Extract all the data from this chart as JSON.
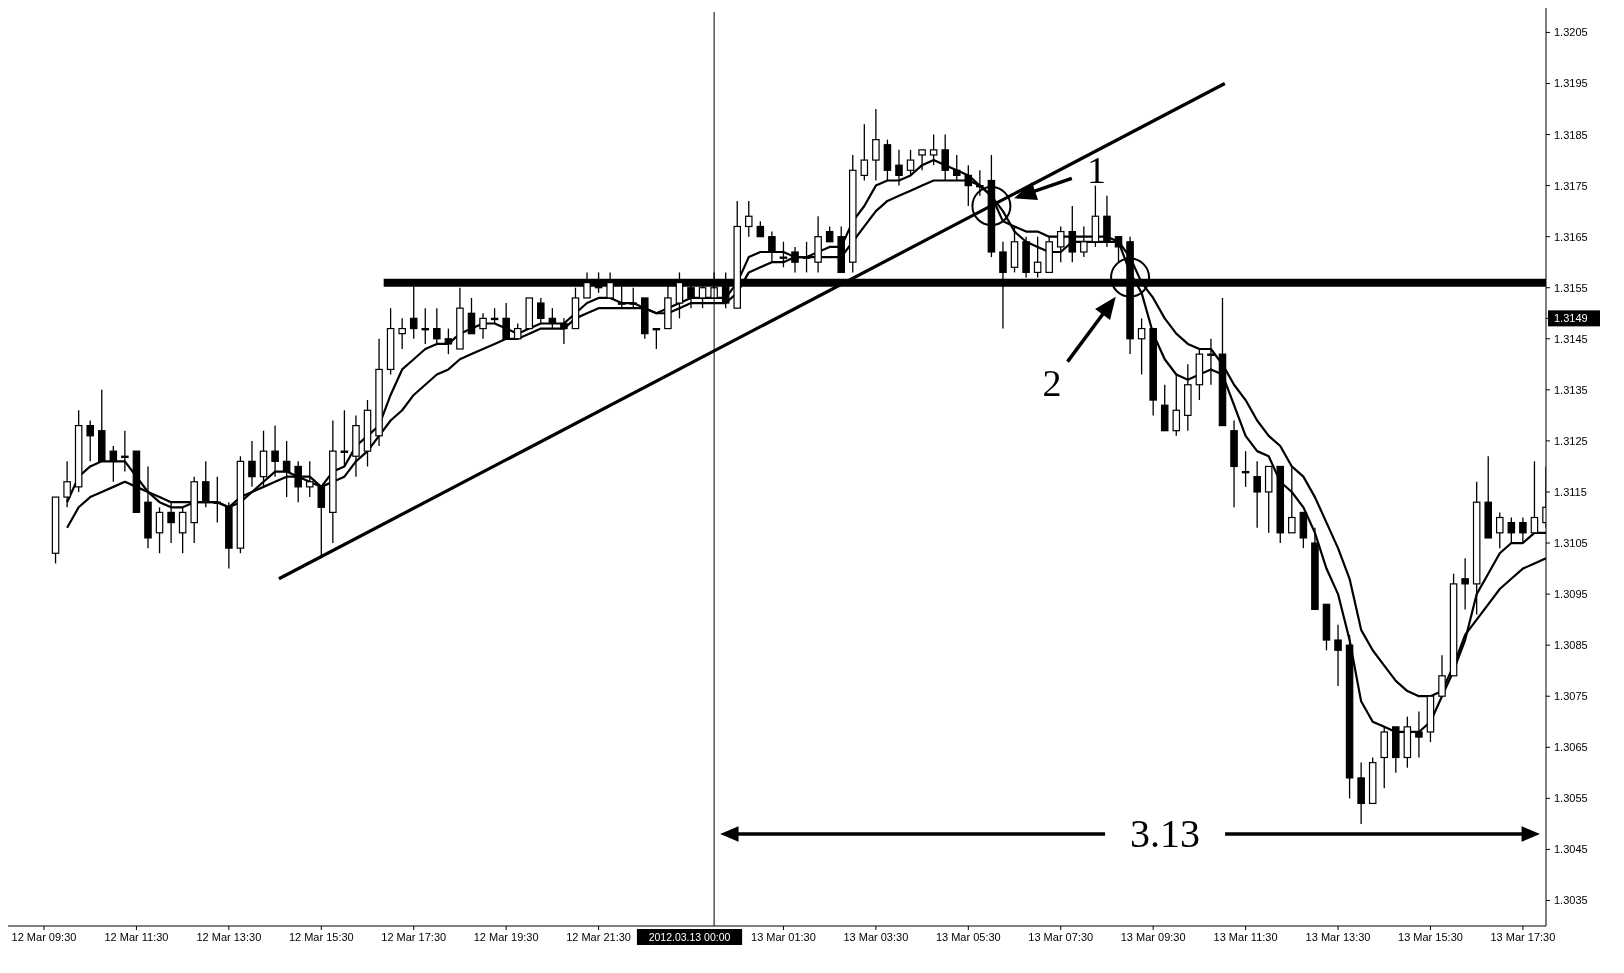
{
  "chart_data": {
    "type": "candlestick",
    "x": [
      "2012-03-12T09:45",
      "2012-03-12T10:00",
      "2012-03-12T10:15",
      "2012-03-12T10:30",
      "2012-03-12T10:45",
      "2012-03-12T11:00",
      "2012-03-12T11:15",
      "2012-03-12T11:30",
      "2012-03-12T11:45",
      "2012-03-12T12:00",
      "2012-03-12T12:15",
      "2012-03-12T12:30",
      "2012-03-12T12:45",
      "2012-03-12T13:00",
      "2012-03-12T13:15",
      "2012-03-12T13:30",
      "2012-03-12T13:45",
      "2012-03-12T14:00",
      "2012-03-12T14:15",
      "2012-03-12T14:30",
      "2012-03-12T14:45",
      "2012-03-12T15:00",
      "2012-03-12T15:15",
      "2012-03-12T15:30",
      "2012-03-12T15:45",
      "2012-03-12T16:00",
      "2012-03-12T16:15",
      "2012-03-12T16:30",
      "2012-03-12T16:45",
      "2012-03-12T17:00",
      "2012-03-12T17:15",
      "2012-03-12T17:30",
      "2012-03-12T17:45",
      "2012-03-12T18:00",
      "2012-03-12T18:15",
      "2012-03-12T18:30",
      "2012-03-12T18:45",
      "2012-03-12T19:00",
      "2012-03-12T19:15",
      "2012-03-12T19:30",
      "2012-03-12T19:45",
      "2012-03-12T20:00",
      "2012-03-12T20:15",
      "2012-03-12T20:30",
      "2012-03-12T20:45",
      "2012-03-12T21:00",
      "2012-03-12T21:15",
      "2012-03-12T21:30",
      "2012-03-12T21:45",
      "2012-03-12T22:00",
      "2012-03-12T22:15",
      "2012-03-12T22:30",
      "2012-03-12T22:45",
      "2012-03-12T23:00",
      "2012-03-12T23:15",
      "2012-03-12T23:30",
      "2012-03-12T23:45",
      "2012-03-13T00:00",
      "2012-03-13T00:15",
      "2012-03-13T00:30",
      "2012-03-13T00:45",
      "2012-03-13T01:00",
      "2012-03-13T01:15",
      "2012-03-13T01:30",
      "2012-03-13T01:45",
      "2012-03-13T02:00",
      "2012-03-13T02:15",
      "2012-03-13T02:30",
      "2012-03-13T02:45",
      "2012-03-13T03:00",
      "2012-03-13T03:15",
      "2012-03-13T03:30",
      "2012-03-13T03:45",
      "2012-03-13T04:00",
      "2012-03-13T04:15",
      "2012-03-13T04:30",
      "2012-03-13T04:45",
      "2012-03-13T05:00",
      "2012-03-13T05:15",
      "2012-03-13T05:30",
      "2012-03-13T05:45",
      "2012-03-13T06:00",
      "2012-03-13T06:15",
      "2012-03-13T06:30",
      "2012-03-13T06:45",
      "2012-03-13T07:00",
      "2012-03-13T07:15",
      "2012-03-13T07:30",
      "2012-03-13T07:45",
      "2012-03-13T08:00",
      "2012-03-13T08:15",
      "2012-03-13T08:30",
      "2012-03-13T08:45",
      "2012-03-13T09:00",
      "2012-03-13T09:15",
      "2012-03-13T09:30",
      "2012-03-13T09:45",
      "2012-03-13T10:00",
      "2012-03-13T10:15",
      "2012-03-13T10:30",
      "2012-03-13T10:45",
      "2012-03-13T11:00",
      "2012-03-13T11:15",
      "2012-03-13T11:30",
      "2012-03-13T11:45",
      "2012-03-13T12:00",
      "2012-03-13T12:15",
      "2012-03-13T12:30",
      "2012-03-13T12:45",
      "2012-03-13T13:00",
      "2012-03-13T13:15",
      "2012-03-13T13:30",
      "2012-03-13T13:45",
      "2012-03-13T14:00",
      "2012-03-13T14:15",
      "2012-03-13T14:30",
      "2012-03-13T14:45",
      "2012-03-13T15:00",
      "2012-03-13T15:15",
      "2012-03-13T15:30",
      "2012-03-13T15:45",
      "2012-03-13T16:00",
      "2012-03-13T16:15",
      "2012-03-13T16:30",
      "2012-03-13T16:45",
      "2012-03-13T17:00",
      "2012-03-13T17:15",
      "2012-03-13T17:30",
      "2012-03-13T17:45",
      "2012-03-13T18:00"
    ],
    "ohlc": [
      [
        1.3103,
        1.3114,
        1.3101,
        1.3114
      ],
      [
        1.3114,
        1.3121,
        1.3112,
        1.3117
      ],
      [
        1.3116,
        1.3131,
        1.3115,
        1.3128
      ],
      [
        1.3128,
        1.3129,
        1.3121,
        1.3126
      ],
      [
        1.3127,
        1.3135,
        1.3121,
        1.3121
      ],
      [
        1.3123,
        1.3124,
        1.3117,
        1.3121
      ],
      [
        1.3122,
        1.3127,
        1.3119,
        1.3122
      ],
      [
        1.3123,
        1.3123,
        1.3111,
        1.3111
      ],
      [
        1.3113,
        1.312,
        1.3104,
        1.3106
      ],
      [
        1.3107,
        1.3112,
        1.3103,
        1.3111
      ],
      [
        1.3111,
        1.3113,
        1.3105,
        1.3109
      ],
      [
        1.3107,
        1.3112,
        1.3103,
        1.3111
      ],
      [
        1.3109,
        1.3118,
        1.3105,
        1.3117
      ],
      [
        1.3117,
        1.3121,
        1.3112,
        1.3113
      ],
      [
        1.3113,
        1.3118,
        1.3109,
        1.3113
      ],
      [
        1.3112,
        1.3113,
        1.31,
        1.3104
      ],
      [
        1.3104,
        1.3122,
        1.3103,
        1.3121
      ],
      [
        1.3121,
        1.3125,
        1.3116,
        1.3118
      ],
      [
        1.3118,
        1.3127,
        1.3116,
        1.3123
      ],
      [
        1.3123,
        1.3128,
        1.3118,
        1.3121
      ],
      [
        1.3121,
        1.3125,
        1.3114,
        1.3119
      ],
      [
        1.312,
        1.3121,
        1.3113,
        1.3116
      ],
      [
        1.3116,
        1.3121,
        1.3114,
        1.3117
      ],
      [
        1.3116,
        1.3116,
        1.3102,
        1.3112
      ],
      [
        1.3111,
        1.3129,
        1.3105,
        1.3123
      ],
      [
        1.3123,
        1.3131,
        1.312,
        1.3123
      ],
      [
        1.3122,
        1.313,
        1.3118,
        1.3128
      ],
      [
        1.3123,
        1.3133,
        1.312,
        1.3131
      ],
      [
        1.3126,
        1.3145,
        1.3124,
        1.3139
      ],
      [
        1.3139,
        1.3151,
        1.3138,
        1.3147
      ],
      [
        1.3146,
        1.3149,
        1.3143,
        1.3147
      ],
      [
        1.3149,
        1.3156,
        1.3145,
        1.3147
      ],
      [
        1.3147,
        1.3151,
        1.3144,
        1.3147
      ],
      [
        1.3147,
        1.3151,
        1.3144,
        1.3145
      ],
      [
        1.3145,
        1.3147,
        1.3142,
        1.3144
      ],
      [
        1.3143,
        1.3155,
        1.3143,
        1.3151
      ],
      [
        1.315,
        1.3153,
        1.3146,
        1.3146
      ],
      [
        1.3147,
        1.315,
        1.3145,
        1.3149
      ],
      [
        1.3149,
        1.3151,
        1.3148,
        1.3149
      ],
      [
        1.3149,
        1.3152,
        1.3145,
        1.3145
      ],
      [
        1.3145,
        1.3148,
        1.3145,
        1.3147
      ],
      [
        1.3147,
        1.3153,
        1.3147,
        1.3153
      ],
      [
        1.3152,
        1.3153,
        1.3148,
        1.3149
      ],
      [
        1.3149,
        1.3151,
        1.3147,
        1.3148
      ],
      [
        1.3148,
        1.3149,
        1.3144,
        1.3147
      ],
      [
        1.3147,
        1.3155,
        1.3147,
        1.3153
      ],
      [
        1.3153,
        1.3158,
        1.3153,
        1.3156
      ],
      [
        1.3156,
        1.3158,
        1.3154,
        1.3155
      ],
      [
        1.3153,
        1.3158,
        1.3153,
        1.3156
      ],
      [
        1.3152,
        1.3156,
        1.3151,
        1.3152
      ],
      [
        1.3152,
        1.3155,
        1.3151,
        1.3152
      ],
      [
        1.3153,
        1.3153,
        1.3145,
        1.3146
      ],
      [
        1.3147,
        1.3147,
        1.3143,
        1.3147
      ],
      [
        1.3147,
        1.3156,
        1.3147,
        1.3153
      ],
      [
        1.3152,
        1.3158,
        1.3149,
        1.3156
      ],
      [
        1.3155,
        1.3156,
        1.3151,
        1.3153
      ],
      [
        1.3153,
        1.3156,
        1.3151,
        1.3155
      ],
      [
        1.3153,
        1.3158,
        1.3153,
        1.3155
      ],
      [
        1.3156,
        1.3158,
        1.3151,
        1.3152
      ],
      [
        1.3151,
        1.3172,
        1.3151,
        1.3167
      ],
      [
        1.3167,
        1.3172,
        1.3165,
        1.3169
      ],
      [
        1.3167,
        1.3168,
        1.3165,
        1.3165
      ],
      [
        1.3165,
        1.3166,
        1.316,
        1.3162
      ],
      [
        1.3161,
        1.3164,
        1.3159,
        1.3161
      ],
      [
        1.3162,
        1.3163,
        1.3158,
        1.316
      ],
      [
        1.3161,
        1.3164,
        1.3158,
        1.3161
      ],
      [
        1.316,
        1.3169,
        1.3158,
        1.3165
      ],
      [
        1.3166,
        1.3167,
        1.3164,
        1.3164
      ],
      [
        1.3165,
        1.3167,
        1.3158,
        1.3158
      ],
      [
        1.316,
        1.3181,
        1.3158,
        1.3178
      ],
      [
        1.3177,
        1.3187,
        1.3176,
        1.318
      ],
      [
        1.318,
        1.319,
        1.3176,
        1.3184
      ],
      [
        1.3183,
        1.3184,
        1.3176,
        1.3178
      ],
      [
        1.3179,
        1.3182,
        1.3175,
        1.3177
      ],
      [
        1.3178,
        1.3182,
        1.3177,
        1.318
      ],
      [
        1.3181,
        1.3182,
        1.3178,
        1.3182
      ],
      [
        1.3181,
        1.3185,
        1.3179,
        1.3182
      ],
      [
        1.3182,
        1.3185,
        1.3176,
        1.3178
      ],
      [
        1.3178,
        1.3181,
        1.3176,
        1.3177
      ],
      [
        1.3177,
        1.3179,
        1.3171,
        1.3175
      ],
      [
        1.3175,
        1.3178,
        1.3173,
        1.3175
      ],
      [
        1.3176,
        1.3181,
        1.3161,
        1.3162
      ],
      [
        1.3162,
        1.3164,
        1.3147,
        1.3158
      ],
      [
        1.3159,
        1.3167,
        1.3158,
        1.3164
      ],
      [
        1.3164,
        1.3165,
        1.3157,
        1.3158
      ],
      [
        1.3158,
        1.3165,
        1.3157,
        1.316
      ],
      [
        1.3158,
        1.3165,
        1.3158,
        1.3164
      ],
      [
        1.3163,
        1.3167,
        1.316,
        1.3166
      ],
      [
        1.3166,
        1.3171,
        1.316,
        1.3162
      ],
      [
        1.3162,
        1.3167,
        1.3161,
        1.3164
      ],
      [
        1.3164,
        1.3175,
        1.3163,
        1.3169
      ],
      [
        1.3169,
        1.3173,
        1.3163,
        1.3164
      ],
      [
        1.3165,
        1.3165,
        1.316,
        1.3163
      ],
      [
        1.3164,
        1.3165,
        1.3142,
        1.3145
      ],
      [
        1.3145,
        1.3149,
        1.3138,
        1.3147
      ],
      [
        1.3147,
        1.3147,
        1.313,
        1.3133
      ],
      [
        1.3132,
        1.3136,
        1.3127,
        1.3127
      ],
      [
        1.3127,
        1.3138,
        1.3126,
        1.3131
      ],
      [
        1.313,
        1.314,
        1.3127,
        1.3136
      ],
      [
        1.3136,
        1.3143,
        1.3133,
        1.3142
      ],
      [
        1.3142,
        1.3145,
        1.3136,
        1.3142
      ],
      [
        1.3142,
        1.3153,
        1.3128,
        1.3128
      ],
      [
        1.3127,
        1.3129,
        1.3112,
        1.312
      ],
      [
        1.3119,
        1.3123,
        1.3116,
        1.3119
      ],
      [
        1.3118,
        1.3121,
        1.3108,
        1.3115
      ],
      [
        1.3115,
        1.312,
        1.3107,
        1.312
      ],
      [
        1.312,
        1.312,
        1.3105,
        1.3107
      ],
      [
        1.3107,
        1.312,
        1.3107,
        1.311
      ],
      [
        1.3111,
        1.3111,
        1.3104,
        1.3106
      ],
      [
        1.3105,
        1.3108,
        1.3092,
        1.3092
      ],
      [
        1.3093,
        1.3093,
        1.3084,
        1.3086
      ],
      [
        1.3086,
        1.3089,
        1.3077,
        1.3084
      ],
      [
        1.3085,
        1.3087,
        1.3055,
        1.3059
      ],
      [
        1.3059,
        1.3062,
        1.305,
        1.3054
      ],
      [
        1.3054,
        1.3063,
        1.3054,
        1.3062
      ],
      [
        1.3063,
        1.3069,
        1.3057,
        1.3068
      ],
      [
        1.3069,
        1.3069,
        1.306,
        1.3063
      ],
      [
        1.3063,
        1.3071,
        1.3061,
        1.3069
      ],
      [
        1.3068,
        1.3072,
        1.3063,
        1.3067
      ],
      [
        1.3068,
        1.3075,
        1.3066,
        1.3075
      ],
      [
        1.3075,
        1.3083,
        1.3075,
        1.3079
      ],
      [
        1.3079,
        1.3099,
        1.3079,
        1.3097
      ],
      [
        1.3098,
        1.3102,
        1.3092,
        1.3097
      ],
      [
        1.3097,
        1.3117,
        1.3091,
        1.3113
      ],
      [
        1.3113,
        1.3122,
        1.3106,
        1.3106
      ],
      [
        1.3107,
        1.3111,
        1.3104,
        1.311
      ],
      [
        1.3109,
        1.311,
        1.3105,
        1.3107
      ],
      [
        1.3109,
        1.311,
        1.3105,
        1.3107
      ],
      [
        1.3107,
        1.3121,
        1.3107,
        1.311
      ],
      [
        1.3109,
        1.312,
        1.3108,
        1.3112
      ]
    ],
    "series": [
      {
        "type": "line",
        "color": "#000000",
        "values": [
          null,
          1.3113,
          1.3118,
          1.312,
          1.3121,
          1.3121,
          1.3121,
          1.3118,
          1.3115,
          1.3114,
          1.3113,
          1.3113,
          1.3113,
          1.3113,
          1.3113,
          1.3112,
          1.3114,
          1.3115,
          1.3117,
          1.3119,
          1.3119,
          1.3118,
          1.3118,
          1.3116,
          1.3119,
          1.312,
          1.3124,
          1.3126,
          1.3128,
          1.3134,
          1.3139,
          1.3141,
          1.3143,
          1.3144,
          1.3144,
          1.3146,
          1.3147,
          1.3148,
          1.3148,
          1.3147,
          1.3146,
          1.3147,
          1.3148,
          1.3148,
          1.3148,
          1.315,
          1.3152,
          1.3153,
          1.3153,
          1.3152,
          1.3152,
          1.3151,
          1.315,
          1.3151,
          1.3152,
          1.3153,
          1.3153,
          1.3153,
          1.3153,
          1.3156,
          1.3161,
          1.3162,
          1.3162,
          1.3162,
          1.3161,
          1.3161,
          1.3162,
          1.3163,
          1.3163,
          1.3168,
          1.3171,
          1.3175,
          1.3176,
          1.3176,
          1.3177,
          1.3179,
          1.318,
          1.3179,
          1.3178,
          1.3177,
          1.3175,
          1.3173,
          1.3168,
          1.3167,
          1.3166,
          1.3166,
          1.3165,
          1.3165,
          1.3165,
          1.3165,
          1.3165,
          1.3165,
          1.3164,
          1.3158,
          1.3154,
          1.3146,
          1.3141,
          1.3138,
          1.3137,
          1.3138,
          1.3139,
          1.3138,
          1.3132,
          1.3126,
          1.3123,
          1.3122,
          1.3117,
          1.3115,
          1.3112,
          1.3107,
          1.31,
          1.3095,
          1.3086,
          1.3074,
          1.307,
          1.3069,
          1.3068,
          1.3068,
          1.3068,
          1.307,
          1.3075,
          1.308,
          1.3086,
          1.3095,
          1.3099,
          1.3103,
          1.3105,
          1.3105,
          1.3107,
          1.3107
        ]
      },
      {
        "type": "line",
        "color": "#000000",
        "values": [
          null,
          1.3108,
          1.3112,
          1.3114,
          1.3115,
          1.3116,
          1.3117,
          1.3116,
          1.3115,
          1.3113,
          1.3112,
          1.3112,
          1.3113,
          1.3113,
          1.3113,
          1.3112,
          1.3113,
          1.3115,
          1.3116,
          1.3117,
          1.3118,
          1.3118,
          1.3117,
          1.3116,
          1.3117,
          1.3118,
          1.3121,
          1.3123,
          1.3126,
          1.3129,
          1.3131,
          1.3134,
          1.3136,
          1.3138,
          1.3139,
          1.3141,
          1.3142,
          1.3143,
          1.3144,
          1.3145,
          1.3145,
          1.3146,
          1.3147,
          1.3147,
          1.3147,
          1.3149,
          1.315,
          1.3151,
          1.3151,
          1.3151,
          1.3151,
          1.3151,
          1.315,
          1.315,
          1.3151,
          1.3152,
          1.3152,
          1.3152,
          1.3152,
          1.3154,
          1.3158,
          1.3159,
          1.316,
          1.316,
          1.3161,
          1.3161,
          1.3161,
          1.3161,
          1.3161,
          1.3164,
          1.3167,
          1.317,
          1.3172,
          1.3173,
          1.3174,
          1.3175,
          1.3176,
          1.3176,
          1.3176,
          1.3176,
          1.3175,
          1.3173,
          1.317,
          1.3166,
          1.3164,
          1.3163,
          1.3162,
          1.3162,
          1.3164,
          1.3164,
          1.3164,
          1.3164,
          1.3164,
          1.3161,
          1.3156,
          1.3153,
          1.3149,
          1.3146,
          1.3144,
          1.3143,
          1.3143,
          1.314,
          1.3136,
          1.3133,
          1.3129,
          1.3126,
          1.3124,
          1.312,
          1.3118,
          1.3114,
          1.3109,
          1.3104,
          1.3098,
          1.3088,
          1.3084,
          1.3081,
          1.3078,
          1.3076,
          1.3075,
          1.3075,
          1.3076,
          1.3081,
          1.3087,
          1.309,
          1.3093,
          1.3096,
          1.3098,
          1.31,
          1.3101,
          1.3102
        ]
      },
      {
        "type": "line",
        "color": "#000000",
        "x": [
          "2012-03-12T14:35",
          "2012-03-13T11:03"
        ],
        "values": [
          1.3098,
          1.3195
        ]
      },
      {
        "type": "line",
        "color": "#000000",
        "x": [
          "2012-03-12T16:51",
          "2012-03-13T18:00"
        ],
        "values": [
          1.3156,
          1.3156
        ]
      }
    ],
    "xlim": [
      "2012-03-12T09:30",
      "2012-03-13T18:00"
    ],
    "xticks": [
      {
        "value": "2012-03-12T09:30",
        "label": "12 Mar 09:30"
      },
      {
        "value": "2012-03-12T11:30",
        "label": "12 Mar 11:30"
      },
      {
        "value": "2012-03-12T13:30",
        "label": "12 Mar 13:30"
      },
      {
        "value": "2012-03-12T15:30",
        "label": "12 Mar 15:30"
      },
      {
        "value": "2012-03-12T17:30",
        "label": "12 Mar 17:30"
      },
      {
        "value": "2012-03-12T19:30",
        "label": "12 Mar 19:30"
      },
      {
        "value": "2012-03-12T21:30",
        "label": "12 Mar 21:30"
      },
      {
        "value": "2012-03-13T01:30",
        "label": "13 Mar 01:30"
      },
      {
        "value": "2012-03-13T03:30",
        "label": "13 Mar 03:30"
      },
      {
        "value": "2012-03-13T05:30",
        "label": "13 Mar 05:30"
      },
      {
        "value": "2012-03-13T07:30",
        "label": "13 Mar 07:30"
      },
      {
        "value": "2012-03-13T09:30",
        "label": "13 Mar 09:30"
      },
      {
        "value": "2012-03-13T11:30",
        "label": "13 Mar 11:30"
      },
      {
        "value": "2012-03-13T13:30",
        "label": "13 Mar 13:30"
      },
      {
        "value": "2012-03-13T15:30",
        "label": "13 Mar 15:30"
      },
      {
        "value": "2012-03-13T17:30",
        "label": "13 Mar 17:30"
      }
    ],
    "ylim": [
      1.303,
      1.3209
    ],
    "yticks": [
      1.3035,
      1.3045,
      1.3055,
      1.3065,
      1.3075,
      1.3085,
      1.3095,
      1.3105,
      1.3115,
      1.3125,
      1.3135,
      1.3145,
      {
        "value": 1.3149,
        "label": "1.3149"
      },
      1.3155,
      1.3165,
      1.3175,
      1.3185,
      1.3195,
      1.3205
    ],
    "ref_lines": [
      {
        "axis": "x",
        "value": "2012-03-13T00:00",
        "label": "2012.03.13 00:00"
      }
    ],
    "annotations": [
      {
        "text": "1",
        "x": "2012-03-13T06:00",
        "y": 1.3171
      },
      {
        "text": "2",
        "x": "2012-03-13T09:00",
        "y": 1.3157
      },
      "3.13"
    ]
  }
}
